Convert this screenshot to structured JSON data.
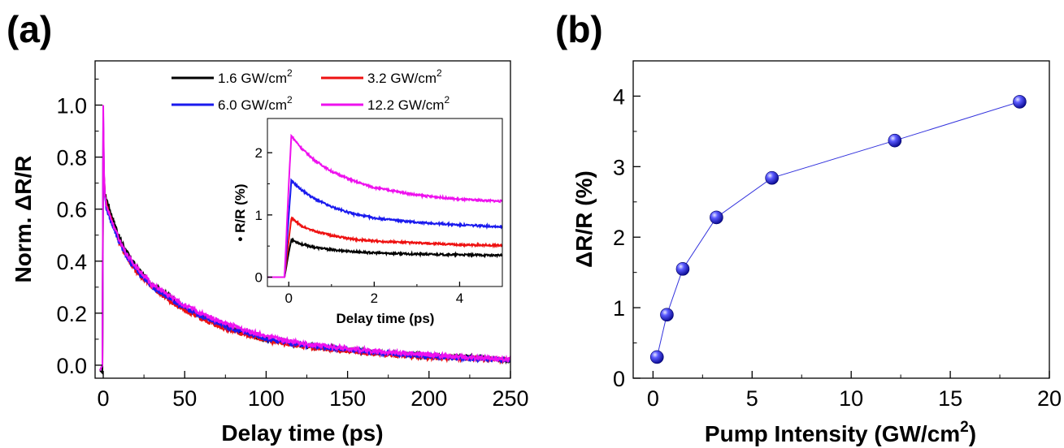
{
  "panel_a": {
    "label": "(a)",
    "xlabel": "Delay time (ps)",
    "ylabel": "Norm. ΔR/R",
    "xticks": [
      "0",
      "50",
      "100",
      "150",
      "200",
      "250"
    ],
    "yticks": [
      "0.0",
      "0.2",
      "0.4",
      "0.6",
      "0.8",
      "1.0"
    ],
    "legend": [
      {
        "text": "1.6 GW/cm",
        "sup": "2"
      },
      {
        "text": "3.2  GW/cm",
        "sup": "2"
      },
      {
        "text": "6.0 GW/cm",
        "sup": "2"
      },
      {
        "text": "12.2 GW/cm",
        "sup": "2"
      }
    ],
    "inset": {
      "xlabel": "Delay time (ps)",
      "ylabel": "• R/R (%)",
      "xticks": [
        "0",
        "2",
        "4"
      ],
      "yticks": [
        "0",
        "1",
        "2"
      ]
    }
  },
  "panel_b": {
    "label": "(b)",
    "xlabel_main": "Pump Intensity (GW/cm",
    "xlabel_sup": "2",
    "xlabel_end": ")",
    "ylabel": "ΔR/R (%)",
    "xticks": [
      "0",
      "5",
      "10",
      "15",
      "20"
    ],
    "yticks": [
      "0",
      "1",
      "2",
      "3",
      "4"
    ]
  },
  "chart_data": [
    {
      "type": "line",
      "xlabel": "Delay time (ps)",
      "ylabel": "Norm. ΔR/R",
      "xlim": [
        -5,
        250
      ],
      "ylim": [
        -0.05,
        1.17
      ],
      "series": [
        {
          "name": "1.6 GW/cm2",
          "color": "#000000",
          "x": [
            -2,
            -0.5,
            0,
            0.5,
            1,
            2,
            5,
            10,
            15,
            20,
            30,
            40,
            50,
            60,
            75,
            100,
            125,
            150,
            175,
            200,
            225,
            250
          ],
          "y": [
            -0.02,
            -0.03,
            0.85,
            0.72,
            0.66,
            0.64,
            0.58,
            0.49,
            0.43,
            0.38,
            0.31,
            0.27,
            0.22,
            0.19,
            0.15,
            0.1,
            0.075,
            0.06,
            0.045,
            0.035,
            0.03,
            0.02
          ]
        },
        {
          "name": "3.2  GW/cm2",
          "color": "#ee1111",
          "x": [
            -2,
            -0.5,
            0,
            0.5,
            1,
            2,
            5,
            10,
            15,
            20,
            30,
            40,
            50,
            60,
            75,
            100,
            125,
            150,
            175,
            200,
            225,
            250
          ],
          "y": [
            -0.02,
            0.0,
            0.92,
            0.73,
            0.66,
            0.62,
            0.56,
            0.47,
            0.41,
            0.36,
            0.3,
            0.25,
            0.21,
            0.18,
            0.14,
            0.095,
            0.07,
            0.055,
            0.04,
            0.03,
            0.025,
            0.02
          ]
        },
        {
          "name": "6.0 GW/cm2",
          "color": "#1a1aee",
          "x": [
            -2,
            -0.5,
            0,
            0.5,
            1,
            2,
            5,
            10,
            15,
            20,
            30,
            40,
            50,
            60,
            75,
            100,
            125,
            150,
            175,
            200,
            225,
            250
          ],
          "y": [
            -0.02,
            0.0,
            0.96,
            0.72,
            0.65,
            0.6,
            0.55,
            0.47,
            0.41,
            0.37,
            0.3,
            0.26,
            0.22,
            0.19,
            0.15,
            0.1,
            0.075,
            0.06,
            0.045,
            0.035,
            0.025,
            0.02
          ]
        },
        {
          "name": "12.2 GW/cm2",
          "color": "#ee11ee",
          "x": [
            -2,
            -0.5,
            0,
            0.5,
            1,
            2,
            5,
            10,
            15,
            20,
            30,
            40,
            50,
            60,
            75,
            100,
            125,
            150,
            175,
            200,
            225,
            250
          ],
          "y": [
            -0.02,
            0.0,
            1.0,
            0.74,
            0.66,
            0.61,
            0.56,
            0.48,
            0.42,
            0.38,
            0.31,
            0.27,
            0.23,
            0.2,
            0.16,
            0.11,
            0.08,
            0.065,
            0.05,
            0.04,
            0.03,
            0.02
          ]
        }
      ]
    },
    {
      "type": "line",
      "xlabel": "Delay time (ps)",
      "ylabel": "• R/R (%)",
      "xlim": [
        -0.5,
        5
      ],
      "ylim": [
        -0.15,
        2.55
      ],
      "series": [
        {
          "name": "1.6 GW/cm2",
          "color": "#000000",
          "x": [
            -0.5,
            -0.1,
            0,
            0.06,
            0.3,
            0.6,
            1,
            1.5,
            2,
            3,
            4,
            5
          ],
          "y": [
            0,
            0,
            0.4,
            0.6,
            0.53,
            0.48,
            0.44,
            0.41,
            0.39,
            0.37,
            0.36,
            0.35
          ]
        },
        {
          "name": "3.2  GW/cm2",
          "color": "#ee1111",
          "x": [
            -0.5,
            -0.1,
            0,
            0.06,
            0.3,
            0.6,
            1,
            1.5,
            2,
            3,
            4,
            5
          ],
          "y": [
            0,
            0,
            0.6,
            0.95,
            0.82,
            0.74,
            0.67,
            0.61,
            0.58,
            0.55,
            0.52,
            0.51
          ]
        },
        {
          "name": "6.0 GW/cm2",
          "color": "#1a1aee",
          "x": [
            -0.5,
            -0.1,
            0,
            0.06,
            0.3,
            0.6,
            1,
            1.5,
            2,
            3,
            4,
            5
          ],
          "y": [
            0,
            0,
            1.0,
            1.55,
            1.4,
            1.26,
            1.13,
            1.02,
            0.95,
            0.88,
            0.84,
            0.81
          ]
        },
        {
          "name": "12.2 GW/cm2",
          "color": "#ee11ee",
          "x": [
            -0.5,
            -0.1,
            0,
            0.06,
            0.3,
            0.6,
            1,
            1.5,
            2,
            3,
            4,
            5
          ],
          "y": [
            0,
            0,
            1.5,
            2.27,
            2.07,
            1.88,
            1.7,
            1.55,
            1.44,
            1.32,
            1.25,
            1.22
          ]
        }
      ]
    },
    {
      "type": "scatter",
      "xlabel": "Pump Intensity (GW/cm2)",
      "ylabel": "ΔR/R (%)",
      "xlim": [
        -1,
        20
      ],
      "ylim": [
        0,
        4.5
      ],
      "series": [
        {
          "name": "",
          "color": "#2222ee",
          "x": [
            0.2,
            0.7,
            1.5,
            3.2,
            6.0,
            12.2,
            18.5
          ],
          "y": [
            0.3,
            0.9,
            1.55,
            2.28,
            2.84,
            3.37,
            3.92
          ]
        }
      ]
    }
  ]
}
